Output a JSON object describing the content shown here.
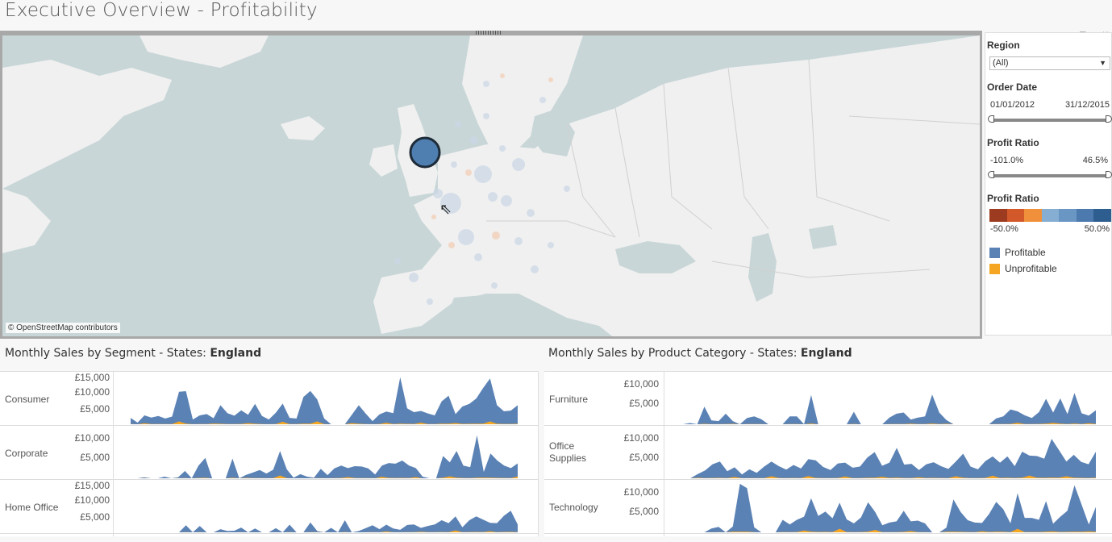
{
  "title": "Executive Overview - Profitability",
  "map": {
    "attribution": "© OpenStreetMap contributors",
    "tools": [
      "▼",
      "⏷",
      "✕"
    ],
    "highlight_color": "#4f7fb0",
    "ocean_color": "#c9d6d7",
    "land_color": "#f0f0f0"
  },
  "filters": {
    "region": {
      "title": "Region",
      "value": "(All)"
    },
    "order_date": {
      "title": "Order Date",
      "start": "01/01/2012",
      "end": "31/12/2015"
    },
    "profit_ratio_filter": {
      "title": "Profit Ratio",
      "min": "-101.0%",
      "max": "46.5%"
    },
    "profit_ratio_legend": {
      "title": "Profit Ratio",
      "min": "-50.0%",
      "max": "50.0%",
      "colors": [
        "#9c3b20",
        "#d4592a",
        "#f0903b",
        "#86aed3",
        "#6a96c4",
        "#4d7aae",
        "#2e5d8f"
      ]
    },
    "legend": [
      {
        "label": "Profitable",
        "color": "#5b82b5"
      },
      {
        "label": "Unprofitable",
        "color": "#f5a623"
      }
    ]
  },
  "segment_chart": {
    "title_prefix": "Monthly Sales by Segment - States: ",
    "title_state": "England",
    "rows": [
      {
        "label": "Consumer",
        "ticks": [
          "£15,000",
          "£10,000",
          "£5,000"
        ]
      },
      {
        "label": "Corporate",
        "ticks": [
          "£10,000",
          "£5,000"
        ]
      },
      {
        "label": "Home Office",
        "ticks": [
          "£15,000",
          "£10,000",
          "£5,000"
        ]
      }
    ]
  },
  "category_chart": {
    "title_prefix": "Monthly Sales by Product Category - States: ",
    "title_state": "England",
    "rows": [
      {
        "label": "Furniture",
        "ticks": [
          "£10,000",
          "£5,000"
        ]
      },
      {
        "label": "Office Supplies",
        "ticks": [
          "£10,000",
          "£5,000"
        ]
      },
      {
        "label": "Technology",
        "ticks": [
          "£10,000",
          "£5,000"
        ]
      }
    ]
  },
  "chart_data": [
    {
      "type": "area",
      "title": "Monthly Sales by Segment - States: England",
      "ylim": [
        0,
        16000
      ],
      "series": [
        {
          "name": "Consumer",
          "values": [
            2000,
            500,
            2800,
            2100,
            2600,
            1800,
            2400,
            10200,
            10400,
            1500,
            2800,
            3200,
            1900,
            6000,
            3500,
            2700,
            4400,
            3000,
            6400,
            2600,
            1500,
            3600,
            6500,
            2000,
            1800,
            8600,
            10500,
            7800,
            1800,
            0,
            0,
            0,
            3000,
            6000,
            3400,
            1000,
            3100,
            4000,
            3500,
            14800,
            5000,
            3800,
            4200,
            3400,
            2800,
            7200,
            9000,
            3200,
            5600,
            6400,
            8100,
            11400,
            14400,
            6000,
            4100,
            4300,
            6000
          ]
        },
        {
          "name": "Corporate",
          "values": [
            0,
            0,
            300,
            0,
            0,
            500,
            0,
            300,
            2300,
            0,
            4000,
            6400,
            0,
            0,
            0,
            6200,
            0,
            1100,
            1800,
            2600,
            1500,
            2700,
            8600,
            2800,
            200,
            1300,
            500,
            200,
            3000,
            1000,
            3100,
            4000,
            3200,
            3800,
            3700,
            3100,
            1200,
            4000,
            4800,
            4600,
            5600,
            4000,
            3200,
            500,
            0,
            0,
            7000,
            5000,
            8600,
            4000,
            3500,
            13500,
            2000,
            7800,
            5600,
            4000,
            3200,
            4700
          ]
        },
        {
          "name": "Home Office",
          "values": [
            0,
            0,
            0,
            0,
            0,
            0,
            0,
            0,
            2200,
            0,
            2000,
            0,
            0,
            1000,
            400,
            500,
            1500,
            0,
            1200,
            0,
            0,
            1300,
            0,
            2400,
            0,
            0,
            3100,
            400,
            0,
            1400,
            0,
            3800,
            0,
            400,
            1300,
            2200,
            1000,
            2400,
            1200,
            800,
            2300,
            2500,
            1400,
            2000,
            2500,
            3800,
            2900,
            5000,
            1600,
            3800,
            5000,
            4000,
            3000,
            2900,
            5200,
            6800,
            2500
          ]
        }
      ]
    },
    {
      "type": "area",
      "title": "Monthly Sales by Product Category - States: England",
      "ylim": [
        0,
        13000
      ],
      "series": [
        {
          "name": "Furniture",
          "values": [
            0,
            300,
            0,
            4500,
            1000,
            800,
            2700,
            800,
            0,
            1600,
            2000,
            1300,
            0,
            0,
            0,
            2000,
            2000,
            0,
            7500,
            0,
            0,
            0,
            0,
            0,
            3200,
            0,
            0,
            0,
            0,
            1700,
            2700,
            3000,
            1200,
            1700,
            2000,
            7600,
            3000,
            1100,
            0,
            0,
            0,
            0,
            0,
            0,
            1500,
            2000,
            3800,
            3300,
            2300,
            1600,
            3100,
            6500,
            3000,
            6600,
            2600,
            8000,
            2800,
            2200,
            3600
          ]
        },
        {
          "name": "Office Supplies",
          "values": [
            0,
            0,
            1100,
            2000,
            3600,
            4300,
            1800,
            2800,
            1000,
            2300,
            1400,
            3000,
            4300,
            3100,
            2200,
            3400,
            2500,
            4900,
            4600,
            2900,
            2100,
            3800,
            4000,
            2700,
            3000,
            5300,
            6700,
            3200,
            4000,
            7800,
            3500,
            3700,
            2100,
            3600,
            4100,
            3100,
            2400,
            4300,
            6300,
            3000,
            2300,
            4400,
            5600,
            4000,
            5600,
            3100,
            6800,
            5800,
            5700,
            5000,
            10100,
            7200,
            4300,
            6000,
            4200,
            3600,
            6800
          ]
        },
        {
          "name": "Technology",
          "values": [
            0,
            0,
            0,
            0,
            1000,
            1400,
            0,
            1500,
            12400,
            11300,
            1300,
            0,
            0,
            0,
            3200,
            2000,
            3200,
            4000,
            8700,
            4200,
            5300,
            3600,
            7600,
            3300,
            2300,
            3800,
            7700,
            5200,
            1800,
            2500,
            2800,
            5500,
            2800,
            3000,
            2300,
            0,
            0,
            1200,
            8400,
            5200,
            3100,
            2500,
            2400,
            4700,
            7800,
            5900,
            2300,
            10000,
            3700,
            3700,
            3200,
            8000,
            2200,
            4000,
            5500,
            12000,
            7100,
            2000,
            6500
          ]
        }
      ]
    }
  ]
}
